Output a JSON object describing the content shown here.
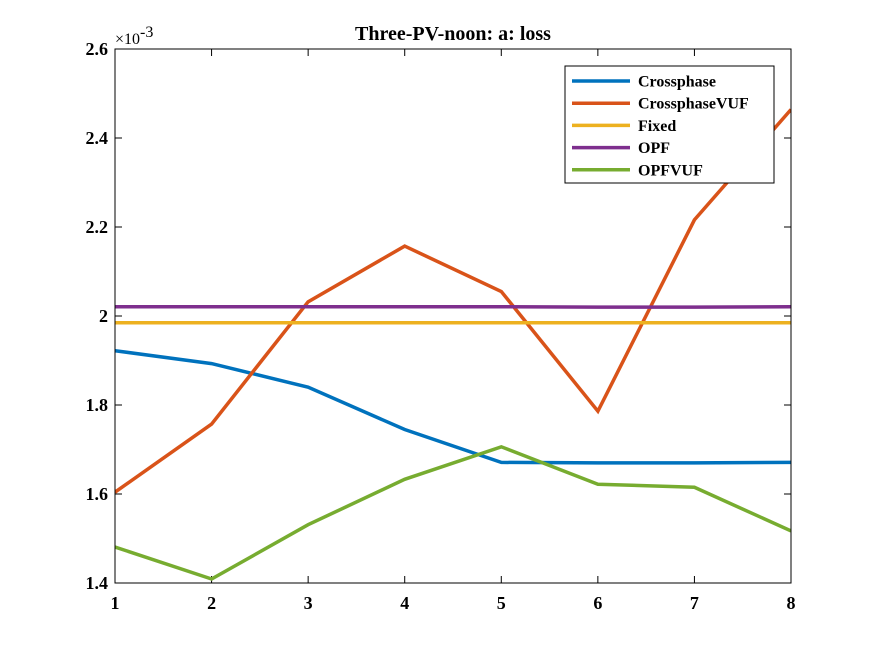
{
  "chart_data": {
    "type": "line",
    "title": "Three-PV-noon: a: loss",
    "xlabel": "",
    "ylabel": "",
    "y_exponent_base": "×10",
    "y_exponent_power": "-3",
    "x": [
      1,
      2,
      3,
      4,
      5,
      6,
      7,
      8
    ],
    "xlim": [
      1,
      8
    ],
    "ylim": [
      1.4,
      2.6
    ],
    "x_ticks": [
      1,
      2,
      3,
      4,
      5,
      6,
      7,
      8
    ],
    "y_ticks": [
      1.4,
      1.6,
      1.8,
      2,
      2.2,
      2.4,
      2.6
    ],
    "y_tick_labels": [
      "1.4",
      "1.6",
      "1.8",
      "2",
      "2.2",
      "2.4",
      "2.6"
    ],
    "grid": false,
    "legend_position": "top-right",
    "series": [
      {
        "name": "Crossphase",
        "color": "#0072bd",
        "values": [
          1.922,
          1.893,
          1.84,
          1.745,
          1.671,
          1.67,
          1.67,
          1.671
        ]
      },
      {
        "name": "CrossphaseVUF",
        "color": "#d95319",
        "values": [
          1.604,
          1.757,
          2.032,
          2.157,
          2.055,
          1.786,
          2.216,
          2.464
        ]
      },
      {
        "name": "Fixed",
        "color": "#edb120",
        "values": [
          1.985,
          1.985,
          1.985,
          1.985,
          1.985,
          1.985,
          1.985,
          1.985
        ]
      },
      {
        "name": "OPF",
        "color": "#7e2f8e",
        "values": [
          2.021,
          2.021,
          2.021,
          2.021,
          2.021,
          2.02,
          2.02,
          2.021
        ]
      },
      {
        "name": "OPFVUF",
        "color": "#77ac30",
        "values": [
          1.481,
          1.409,
          1.531,
          1.633,
          1.706,
          1.622,
          1.615,
          1.517
        ]
      }
    ]
  }
}
